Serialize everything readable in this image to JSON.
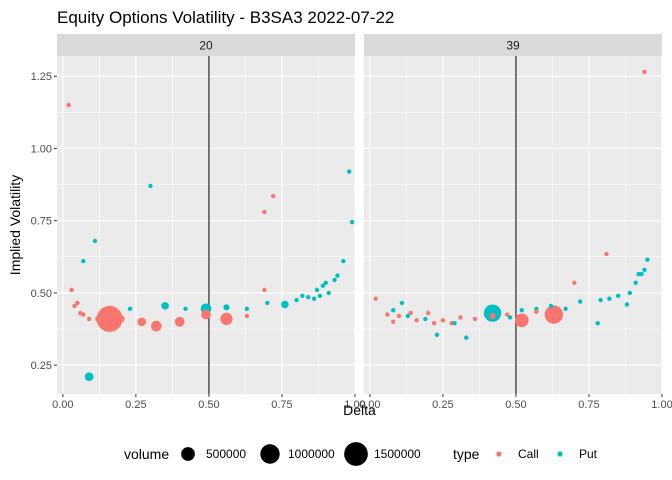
{
  "chart_data": {
    "type": "scatter",
    "title": "Equity Options Volatility - B3SA3 2022-07-22",
    "xlabel": "Delta",
    "ylabel": "Implied Volatility",
    "xlim": [
      -0.02,
      1.0
    ],
    "ylim": [
      0.15,
      1.32
    ],
    "x_ticks": [
      0.0,
      0.25,
      0.5,
      0.75,
      1.0
    ],
    "x_tick_labels": [
      "0.00",
      "0.25",
      "0.50",
      "0.75",
      "1.00"
    ],
    "y_ticks": [
      0.25,
      0.5,
      0.75,
      1.0,
      1.25
    ],
    "y_tick_labels": [
      "0.25",
      "0.50",
      "0.75",
      "1.00",
      "1.25"
    ],
    "vline_x": 0.5,
    "grid": true,
    "legend_position": "bottom",
    "colors": {
      "Call": "#F8766D",
      "Put": "#00BFC4",
      "panel": "#EBEBEB",
      "strip": "#D9D9D9",
      "grid": "#FFFFFF",
      "vline": "#595959"
    },
    "size_legend": {
      "title": "volume",
      "values": [
        500000,
        1000000,
        1500000
      ],
      "labels": [
        "500000",
        "1000000",
        "1500000"
      ]
    },
    "type_legend": {
      "title": "type",
      "labels": [
        "Call",
        "Put"
      ]
    },
    "panels": [
      {
        "label": "20",
        "points": [
          {
            "x": 0.02,
            "y": 1.15,
            "type": "Call",
            "volume": 5000
          },
          {
            "x": 0.03,
            "y": 0.51,
            "type": "Call",
            "volume": 5000
          },
          {
            "x": 0.04,
            "y": 0.455,
            "type": "Call",
            "volume": 5000
          },
          {
            "x": 0.05,
            "y": 0.465,
            "type": "Call",
            "volume": 5000
          },
          {
            "x": 0.06,
            "y": 0.43,
            "type": "Call",
            "volume": 5000
          },
          {
            "x": 0.07,
            "y": 0.425,
            "type": "Call",
            "volume": 20000
          },
          {
            "x": 0.09,
            "y": 0.41,
            "type": "Call",
            "volume": 50000
          },
          {
            "x": 0.12,
            "y": 0.41,
            "type": "Call",
            "volume": 80000
          },
          {
            "x": 0.16,
            "y": 0.41,
            "type": "Call",
            "volume": 1800000
          },
          {
            "x": 0.2,
            "y": 0.41,
            "type": "Call",
            "volume": 120000
          },
          {
            "x": 0.27,
            "y": 0.4,
            "type": "Call",
            "volume": 200000
          },
          {
            "x": 0.32,
            "y": 0.385,
            "type": "Call",
            "volume": 300000
          },
          {
            "x": 0.4,
            "y": 0.4,
            "type": "Call",
            "volume": 250000
          },
          {
            "x": 0.49,
            "y": 0.425,
            "type": "Call",
            "volume": 250000
          },
          {
            "x": 0.56,
            "y": 0.41,
            "type": "Call",
            "volume": 400000
          },
          {
            "x": 0.63,
            "y": 0.42,
            "type": "Call",
            "volume": 30000
          },
          {
            "x": 0.69,
            "y": 0.51,
            "type": "Call",
            "volume": 5000
          },
          {
            "x": 0.69,
            "y": 0.78,
            "type": "Call",
            "volume": 5000
          },
          {
            "x": 0.72,
            "y": 0.835,
            "type": "Call",
            "volume": 5000
          },
          {
            "x": 0.07,
            "y": 0.61,
            "type": "Put",
            "volume": 5000
          },
          {
            "x": 0.09,
            "y": 0.21,
            "type": "Put",
            "volume": 200000
          },
          {
            "x": 0.11,
            "y": 0.68,
            "type": "Put",
            "volume": 5000
          },
          {
            "x": 0.23,
            "y": 0.445,
            "type": "Put",
            "volume": 5000
          },
          {
            "x": 0.3,
            "y": 0.87,
            "type": "Put",
            "volume": 5000
          },
          {
            "x": 0.35,
            "y": 0.455,
            "type": "Put",
            "volume": 150000
          },
          {
            "x": 0.42,
            "y": 0.445,
            "type": "Put",
            "volume": 50000
          },
          {
            "x": 0.49,
            "y": 0.445,
            "type": "Put",
            "volume": 300000
          },
          {
            "x": 0.56,
            "y": 0.45,
            "type": "Put",
            "volume": 100000
          },
          {
            "x": 0.63,
            "y": 0.445,
            "type": "Put",
            "volume": 50000
          },
          {
            "x": 0.7,
            "y": 0.465,
            "type": "Put",
            "volume": 30000
          },
          {
            "x": 0.76,
            "y": 0.46,
            "type": "Put",
            "volume": 150000
          },
          {
            "x": 0.8,
            "y": 0.475,
            "type": "Put",
            "volume": 5000
          },
          {
            "x": 0.82,
            "y": 0.49,
            "type": "Put",
            "volume": 20000
          },
          {
            "x": 0.84,
            "y": 0.485,
            "type": "Put",
            "volume": 5000
          },
          {
            "x": 0.86,
            "y": 0.48,
            "type": "Put",
            "volume": 5000
          },
          {
            "x": 0.87,
            "y": 0.51,
            "type": "Put",
            "volume": 5000
          },
          {
            "x": 0.88,
            "y": 0.49,
            "type": "Put",
            "volume": 5000
          },
          {
            "x": 0.89,
            "y": 0.525,
            "type": "Put",
            "volume": 5000
          },
          {
            "x": 0.9,
            "y": 0.535,
            "type": "Put",
            "volume": 5000
          },
          {
            "x": 0.91,
            "y": 0.5,
            "type": "Put",
            "volume": 5000
          },
          {
            "x": 0.93,
            "y": 0.545,
            "type": "Put",
            "volume": 5000
          },
          {
            "x": 0.94,
            "y": 0.56,
            "type": "Put",
            "volume": 5000
          },
          {
            "x": 0.96,
            "y": 0.61,
            "type": "Put",
            "volume": 5000
          },
          {
            "x": 0.98,
            "y": 0.92,
            "type": "Put",
            "volume": 5000
          },
          {
            "x": 0.99,
            "y": 0.745,
            "type": "Put",
            "volume": 5000
          }
        ]
      },
      {
        "label": "39",
        "points": [
          {
            "x": 0.02,
            "y": 0.48,
            "type": "Call",
            "volume": 5000
          },
          {
            "x": 0.06,
            "y": 0.425,
            "type": "Call",
            "volume": 5000
          },
          {
            "x": 0.08,
            "y": 0.4,
            "type": "Call",
            "volume": 5000
          },
          {
            "x": 0.1,
            "y": 0.42,
            "type": "Call",
            "volume": 5000
          },
          {
            "x": 0.14,
            "y": 0.43,
            "type": "Call",
            "volume": 5000
          },
          {
            "x": 0.16,
            "y": 0.405,
            "type": "Call",
            "volume": 5000
          },
          {
            "x": 0.2,
            "y": 0.43,
            "type": "Call",
            "volume": 5000
          },
          {
            "x": 0.22,
            "y": 0.395,
            "type": "Call",
            "volume": 5000
          },
          {
            "x": 0.25,
            "y": 0.405,
            "type": "Call",
            "volume": 5000
          },
          {
            "x": 0.28,
            "y": 0.395,
            "type": "Call",
            "volume": 5000
          },
          {
            "x": 0.31,
            "y": 0.415,
            "type": "Call",
            "volume": 20000
          },
          {
            "x": 0.36,
            "y": 0.41,
            "type": "Call",
            "volume": 5000
          },
          {
            "x": 0.42,
            "y": 0.42,
            "type": "Call",
            "volume": 100000
          },
          {
            "x": 0.47,
            "y": 0.425,
            "type": "Call",
            "volume": 5000
          },
          {
            "x": 0.52,
            "y": 0.405,
            "type": "Call",
            "volume": 500000
          },
          {
            "x": 0.57,
            "y": 0.435,
            "type": "Call",
            "volume": 5000
          },
          {
            "x": 0.63,
            "y": 0.425,
            "type": "Call",
            "volume": 900000
          },
          {
            "x": 0.7,
            "y": 0.535,
            "type": "Call",
            "volume": 5000
          },
          {
            "x": 0.81,
            "y": 0.635,
            "type": "Call",
            "volume": 5000
          },
          {
            "x": 0.94,
            "y": 1.265,
            "type": "Call",
            "volume": 5000
          },
          {
            "x": 0.08,
            "y": 0.44,
            "type": "Put",
            "volume": 10000
          },
          {
            "x": 0.11,
            "y": 0.465,
            "type": "Put",
            "volume": 5000
          },
          {
            "x": 0.13,
            "y": 0.42,
            "type": "Put",
            "volume": 5000
          },
          {
            "x": 0.19,
            "y": 0.41,
            "type": "Put",
            "volume": 10000
          },
          {
            "x": 0.23,
            "y": 0.355,
            "type": "Put",
            "volume": 5000
          },
          {
            "x": 0.29,
            "y": 0.395,
            "type": "Put",
            "volume": 5000
          },
          {
            "x": 0.33,
            "y": 0.345,
            "type": "Put",
            "volume": 10000
          },
          {
            "x": 0.42,
            "y": 0.43,
            "type": "Put",
            "volume": 800000
          },
          {
            "x": 0.48,
            "y": 0.415,
            "type": "Put",
            "volume": 5000
          },
          {
            "x": 0.52,
            "y": 0.44,
            "type": "Put",
            "volume": 20000
          },
          {
            "x": 0.57,
            "y": 0.445,
            "type": "Put",
            "volume": 20000
          },
          {
            "x": 0.62,
            "y": 0.455,
            "type": "Put",
            "volume": 40000
          },
          {
            "x": 0.67,
            "y": 0.445,
            "type": "Put",
            "volume": 30000
          },
          {
            "x": 0.72,
            "y": 0.47,
            "type": "Put",
            "volume": 20000
          },
          {
            "x": 0.78,
            "y": 0.395,
            "type": "Put",
            "volume": 40000
          },
          {
            "x": 0.79,
            "y": 0.475,
            "type": "Put",
            "volume": 5000
          },
          {
            "x": 0.82,
            "y": 0.48,
            "type": "Put",
            "volume": 5000
          },
          {
            "x": 0.85,
            "y": 0.49,
            "type": "Put",
            "volume": 5000
          },
          {
            "x": 0.88,
            "y": 0.46,
            "type": "Put",
            "volume": 5000
          },
          {
            "x": 0.89,
            "y": 0.5,
            "type": "Put",
            "volume": 5000
          },
          {
            "x": 0.91,
            "y": 0.535,
            "type": "Put",
            "volume": 5000
          },
          {
            "x": 0.92,
            "y": 0.565,
            "type": "Put",
            "volume": 5000
          },
          {
            "x": 0.93,
            "y": 0.565,
            "type": "Put",
            "volume": 5000
          },
          {
            "x": 0.94,
            "y": 0.58,
            "type": "Put",
            "volume": 5000
          },
          {
            "x": 0.95,
            "y": 0.615,
            "type": "Put",
            "volume": 5000
          }
        ]
      }
    ]
  }
}
